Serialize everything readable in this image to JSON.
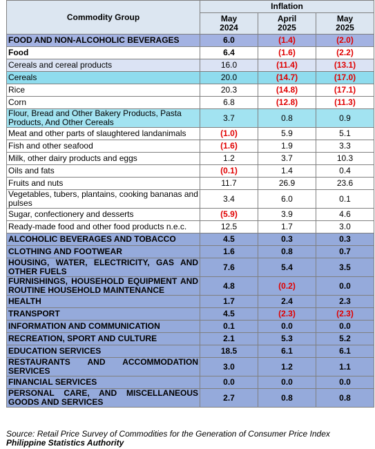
{
  "header": {
    "group": "Commodity Group",
    "inflation": "Inflation",
    "periods": [
      [
        "May",
        "2024"
      ],
      [
        "April",
        "2025"
      ],
      [
        "May",
        "2025"
      ]
    ]
  },
  "rows": [
    {
      "name": "FOOD AND NON-ALCOHOLIC BEVERAGES",
      "values": [
        "6.0",
        "(1.4)",
        "(2.0)"
      ],
      "fill": "#a3b2e2",
      "bold": true
    },
    {
      "name": "Food",
      "values": [
        "6.4",
        "(1.6)",
        "(2.2)"
      ],
      "fill": "#ffffff",
      "bold": true
    },
    {
      "name": "Cereals and cereal products",
      "values": [
        "16.0",
        "(11.4)",
        "(13.1)"
      ],
      "fill": "#dbe3f4",
      "bold": false
    },
    {
      "name": "Cereals",
      "values": [
        "20.0",
        "(14.7)",
        "(17.0)"
      ],
      "fill": "#8fdcee",
      "bold": false
    },
    {
      "name": "Rice",
      "values": [
        "20.3",
        "(14.8)",
        "(17.1)"
      ],
      "fill": "#ffffff",
      "bold": false
    },
    {
      "name": "Corn",
      "values": [
        "6.8",
        "(12.8)",
        "(11.3)"
      ],
      "fill": "#ffffff",
      "bold": false
    },
    {
      "name": "Flour, Bread and Other Bakery Products, Pasta Products, And Other Cereals",
      "values": [
        "3.7",
        "0.8",
        "0.9"
      ],
      "fill": "#a2e3f1",
      "bold": false
    },
    {
      "name": "Meat and other parts of slaughtered landanimals",
      "values": [
        "(1.0)",
        "5.9",
        "5.1"
      ],
      "fill": "#ffffff",
      "bold": false
    },
    {
      "name": "Fish and other seafood",
      "values": [
        "(1.6)",
        "1.9",
        "3.3"
      ],
      "fill": "#ffffff",
      "bold": false
    },
    {
      "name": "Milk, other dairy products and eggs",
      "values": [
        "1.2",
        "3.7",
        "10.3"
      ],
      "fill": "#ffffff",
      "bold": false
    },
    {
      "name": "Oils and fats",
      "values": [
        "(0.1)",
        "1.4",
        "0.4"
      ],
      "fill": "#ffffff",
      "bold": false
    },
    {
      "name": "Fruits and nuts",
      "values": [
        "11.7",
        "26.9",
        "23.6"
      ],
      "fill": "#ffffff",
      "bold": false
    },
    {
      "name": "Vegetables, tubers, plantains, cooking bananas and pulses",
      "values": [
        "3.4",
        "6.0",
        "0.1"
      ],
      "fill": "#ffffff",
      "bold": false
    },
    {
      "name": "Sugar, confectionery and desserts",
      "values": [
        "(5.9)",
        "3.9",
        "4.6"
      ],
      "fill": "#ffffff",
      "bold": false
    },
    {
      "name": "Ready-made food and other food products n.e.c.",
      "values": [
        "12.5",
        "1.7",
        "3.0"
      ],
      "fill": "#ffffff",
      "bold": false
    },
    {
      "name": "ALCOHOLIC BEVERAGES AND TOBACCO",
      "values": [
        "4.5",
        "0.3",
        "0.3"
      ],
      "fill": "#95aadb",
      "bold": true
    },
    {
      "name": "CLOTHING AND FOOTWEAR",
      "values": [
        "1.6",
        "0.8",
        "0.7"
      ],
      "fill": "#95aadb",
      "bold": true
    },
    {
      "name": "HOUSING, WATER, ELECTRICITY, GAS AND OTHER FUELS",
      "values": [
        "7.6",
        "5.4",
        "3.5"
      ],
      "fill": "#95aadb",
      "bold": true
    },
    {
      "name": "FURNISHINGS, HOUSEHOLD EQUIPMENT AND ROUTINE HOUSEHOLD MAINTENANCE",
      "values": [
        "4.8",
        "(0.2)",
        "0.0"
      ],
      "fill": "#95aadb",
      "bold": true
    },
    {
      "name": "HEALTH",
      "values": [
        "1.7",
        "2.4",
        "2.3"
      ],
      "fill": "#95aadb",
      "bold": true
    },
    {
      "name": "TRANSPORT",
      "values": [
        "4.5",
        "(2.3)",
        "(2.3)"
      ],
      "fill": "#95aadb",
      "bold": true
    },
    {
      "name": "INFORMATION AND COMMUNICATION",
      "values": [
        "0.1",
        "0.0",
        "0.0"
      ],
      "fill": "#95aadb",
      "bold": true
    },
    {
      "name": "RECREATION, SPORT AND CULTURE",
      "values": [
        "2.1",
        "5.3",
        "5.2"
      ],
      "fill": "#95aadb",
      "bold": true
    },
    {
      "name": "EDUCATION SERVICES",
      "values": [
        "18.5",
        "6.1",
        "6.1"
      ],
      "fill": "#95aadb",
      "bold": true
    },
    {
      "name": "RESTAURANTS AND ACCOMMODATION SERVICES",
      "values": [
        "3.0",
        "1.2",
        "1.1"
      ],
      "fill": "#95aadb",
      "bold": true
    },
    {
      "name": "FINANCIAL SERVICES",
      "values": [
        "0.0",
        "0.0",
        "0.0"
      ],
      "fill": "#95aadb",
      "bold": true
    },
    {
      "name": "PERSONAL CARE, AND MISCELLANEOUS GOODS AND SERVICES",
      "values": [
        "2.7",
        "0.8",
        "0.8"
      ],
      "fill": "#95aadb",
      "bold": true
    }
  ],
  "source": {
    "text": "Source: Retail Price Survey of Commodities for the Generation of Consumer Price Index",
    "organization": "Philippine Statistics Authority"
  }
}
